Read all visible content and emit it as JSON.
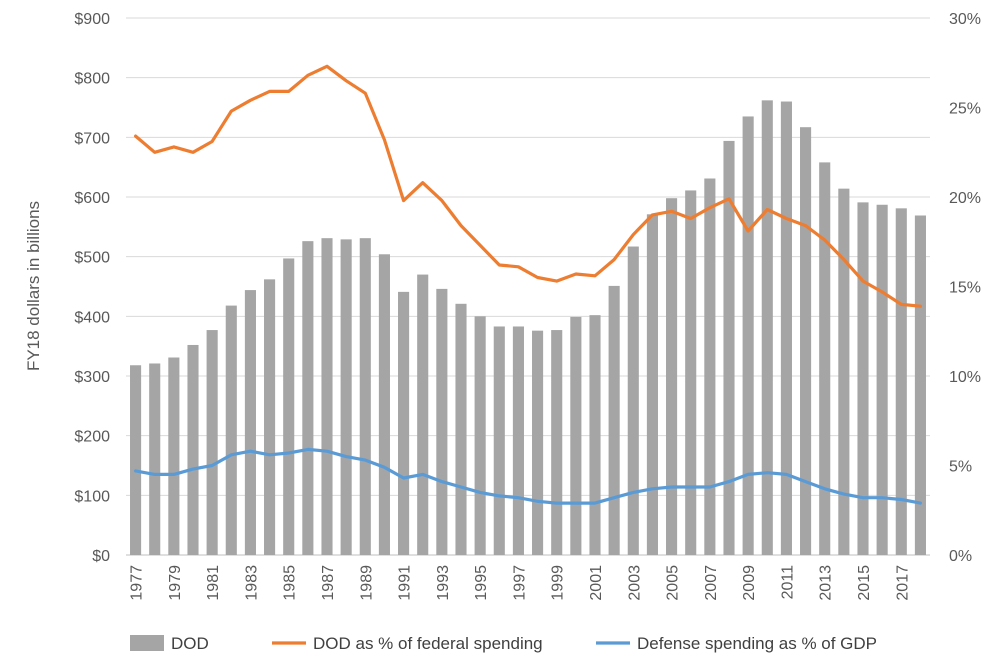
{
  "chart_data": {
    "type": "bar",
    "title": "",
    "xlabel": "",
    "ylabel": "FY18 dollars in billions",
    "ylim": [
      0,
      900
    ],
    "y2lim": [
      0,
      30
    ],
    "grid": "horizontal",
    "legend_position": "bottom",
    "categories": [
      1977,
      1978,
      1979,
      1980,
      1981,
      1982,
      1983,
      1984,
      1985,
      1986,
      1987,
      1988,
      1989,
      1990,
      1991,
      1992,
      1993,
      1994,
      1995,
      1996,
      1997,
      1998,
      1999,
      2000,
      2001,
      2002,
      2003,
      2004,
      2005,
      2006,
      2007,
      2008,
      2009,
      2010,
      2011,
      2012,
      2013,
      2014,
      2015,
      2016,
      2017,
      2018
    ],
    "x_tick_labels": [
      "1977",
      "1979",
      "1981",
      "1983",
      "1985",
      "1987",
      "1989",
      "1991",
      "1993",
      "1995",
      "1997",
      "1999",
      "2001",
      "2003",
      "2005",
      "2007",
      "2009",
      "2011",
      "2013",
      "2015",
      "2017"
    ],
    "y_tick_labels": [
      "$0",
      "$100",
      "$200",
      "$300",
      "$400",
      "$500",
      "$600",
      "$700",
      "$800",
      "$900"
    ],
    "y2_tick_labels": [
      "0%",
      "5%",
      "10%",
      "15%",
      "20%",
      "25%",
      "30%"
    ],
    "series": [
      {
        "name": "DOD",
        "type": "bar",
        "axis": "left",
        "color": "#a5a5a5",
        "values": [
          318,
          321,
          331,
          352,
          377,
          418,
          444,
          462,
          497,
          526,
          531,
          529,
          531,
          504,
          441,
          470,
          446,
          421,
          400,
          383,
          383,
          376,
          377,
          399,
          402,
          451,
          517,
          571,
          598,
          611,
          631,
          694,
          735,
          762,
          760,
          717,
          658,
          614,
          591,
          587,
          581,
          569
        ]
      },
      {
        "name": "DOD as % of federal spending",
        "type": "line",
        "axis": "right",
        "color": "#ed7d31",
        "values": [
          23.4,
          22.5,
          22.8,
          22.5,
          23.1,
          24.8,
          25.4,
          25.9,
          25.9,
          26.8,
          27.3,
          26.5,
          25.8,
          23.2,
          19.8,
          20.8,
          19.8,
          18.4,
          17.3,
          16.2,
          16.1,
          15.5,
          15.3,
          15.7,
          15.6,
          16.5,
          17.9,
          19.0,
          19.2,
          18.8,
          19.4,
          19.9,
          18.1,
          19.3,
          18.8,
          18.4,
          17.6,
          16.5,
          15.3,
          14.7,
          14.0,
          13.9
        ]
      },
      {
        "name": "Defense spending as % of GDP",
        "type": "line",
        "axis": "right",
        "color": "#5b9bd5",
        "values": [
          4.7,
          4.5,
          4.5,
          4.8,
          5.0,
          5.6,
          5.8,
          5.6,
          5.7,
          5.9,
          5.8,
          5.5,
          5.3,
          4.9,
          4.3,
          4.5,
          4.1,
          3.8,
          3.5,
          3.3,
          3.2,
          3.0,
          2.9,
          2.9,
          2.9,
          3.2,
          3.5,
          3.7,
          3.8,
          3.8,
          3.8,
          4.1,
          4.5,
          4.6,
          4.5,
          4.1,
          3.7,
          3.4,
          3.2,
          3.2,
          3.1,
          2.9
        ]
      }
    ]
  }
}
